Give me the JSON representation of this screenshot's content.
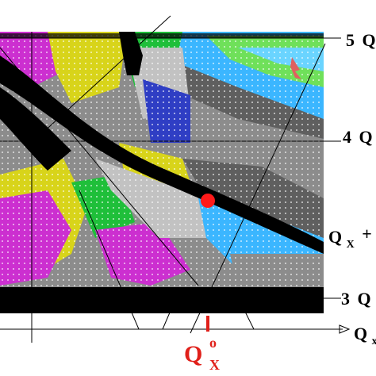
{
  "chart_data": {
    "type": "heatmap",
    "title": "",
    "colors": {
      "palette": [
        "#000000",
        "#8c8c8c",
        "#5f5f5f",
        "#c2c2c2",
        "#1fbf3a",
        "#3bb6ff",
        "#cc2fd0",
        "#d8d41a",
        "#6fe05a",
        "#2f3ec4",
        "#6ad4ff"
      ],
      "marker": "#ff1a1a",
      "threshold_marker": "#e0201a"
    },
    "horizontal_lines": [
      {
        "label": "5 Q",
        "prefix": "5",
        "letter": "Q",
        "y_fraction": 0.97
      },
      {
        "label": "4 Q",
        "prefix": "4",
        "letter": "Q",
        "y_fraction": 0.6
      },
      {
        "label": "3 Q",
        "prefix": "3",
        "letter": "Q",
        "y_fraction": 0.04
      }
    ],
    "side_label": {
      "letter": "Q",
      "subscript": "X",
      "suffix": "+"
    },
    "x_axis_label": {
      "letter": "Q",
      "subscript": "x"
    },
    "threshold": {
      "letter": "Q",
      "subscript": "X",
      "superscript": "o",
      "x_fraction": 0.64
    },
    "marker_point": {
      "x_fraction": 0.65,
      "y_fraction": 0.42
    },
    "grid": false
  }
}
